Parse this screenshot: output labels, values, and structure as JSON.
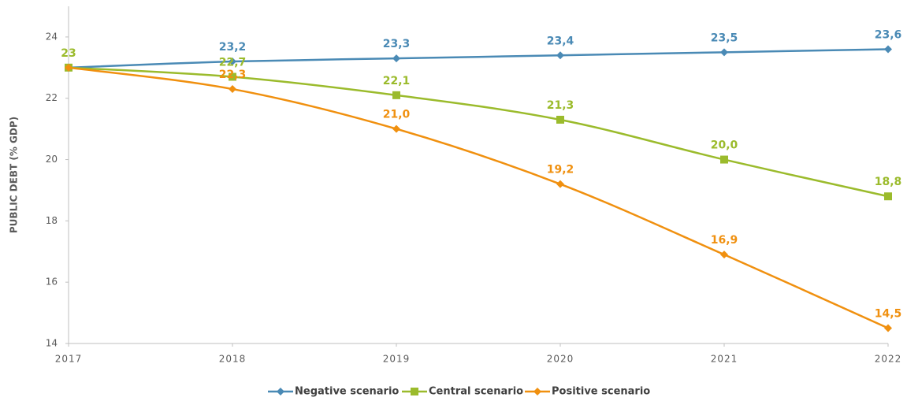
{
  "chart_data": {
    "type": "line",
    "y_label": "PUBLIC DEBT (% GDP)",
    "x": [
      2017,
      2018,
      2019,
      2020,
      2021,
      2022
    ],
    "xlim": [
      2017,
      2022
    ],
    "xticks": [
      2017,
      2018,
      2019,
      2020,
      2021,
      2022
    ],
    "ylim": [
      14,
      25
    ],
    "yticks": [
      14,
      16,
      18,
      20,
      22,
      24
    ],
    "legend": "bottom",
    "series": [
      {
        "name": "Negative scenario",
        "color": "#4a8ab5",
        "marker": "diamond",
        "values": [
          23,
          23.2,
          23.3,
          23.4,
          23.5,
          23.6
        ],
        "value_labels": [
          null,
          "23,2",
          "23,3",
          "23,4",
          "23,5",
          "23,6"
        ]
      },
      {
        "name": "Central scenario",
        "color": "#9bbb2c",
        "marker": "square",
        "values": [
          23,
          22.7,
          22.1,
          21.3,
          20.0,
          18.8
        ],
        "value_labels": [
          "23",
          "22,7",
          "22,1",
          "21,3",
          "20,0",
          "18,8"
        ]
      },
      {
        "name": "Positive scenario",
        "color": "#f0900f",
        "marker": "diamond",
        "values": [
          23,
          22.3,
          21.0,
          19.2,
          16.9,
          14.5
        ],
        "value_labels": [
          null,
          "22,3",
          "21,0",
          "19,2",
          "16,9",
          "14,5"
        ]
      }
    ]
  }
}
